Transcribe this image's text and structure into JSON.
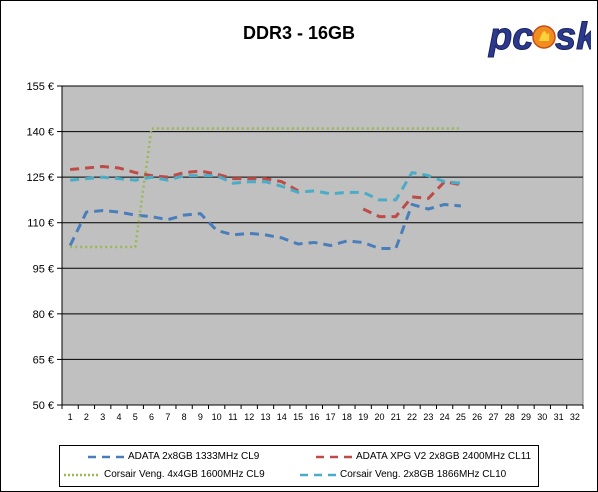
{
  "brand": {
    "logo_text": "pcosk"
  },
  "chart_data": {
    "type": "line",
    "title": "DDR3 - 16GB",
    "xlabel": "",
    "ylabel": "",
    "x": [
      1,
      2,
      3,
      4,
      5,
      6,
      7,
      8,
      9,
      10,
      11,
      12,
      13,
      14,
      15,
      16,
      17,
      18,
      19,
      20,
      21,
      22,
      23,
      24,
      25,
      26,
      27,
      28,
      29,
      30,
      31,
      32
    ],
    "x_tick_labels": [
      "1",
      "2",
      "3",
      "4",
      "5",
      "6",
      "7",
      "8",
      "9",
      "10",
      "11",
      "12",
      "13",
      "14",
      "15",
      "16",
      "17",
      "18",
      "19",
      "20",
      "21",
      "22",
      "23",
      "24",
      "25",
      "26",
      "27",
      "28",
      "29",
      "30",
      "31",
      "32"
    ],
    "ylim": [
      50,
      155
    ],
    "y_ticks": [
      50,
      65,
      80,
      95,
      110,
      125,
      140,
      155
    ],
    "y_tick_labels": [
      "50 €",
      "65 €",
      "80 €",
      "95 €",
      "110 €",
      "125 €",
      "140 €",
      "155 €"
    ],
    "grid": "horizontal",
    "plot_background": "#c0c0c0",
    "legend_position": "bottom",
    "series": [
      {
        "name": "ADATA 2x8GB 1333MHz CL9",
        "color": "#4a7ebb",
        "style": "dashed",
        "values": [
          102.5,
          113.5,
          114,
          113.5,
          112.5,
          112,
          111,
          112.5,
          113,
          107.5,
          106,
          106.5,
          106,
          105,
          103,
          103.5,
          102.5,
          104,
          103.5,
          101.5,
          101.5,
          116,
          114.5,
          116,
          115.5,
          null,
          null,
          null,
          null,
          null,
          null,
          null
        ]
      },
      {
        "name": "ADATA XPG V2 2x8GB 2400MHz CL11",
        "color": "#be4b48",
        "style": "dashed",
        "values": [
          null,
          null,
          null,
          null,
          null,
          null,
          null,
          null,
          null,
          null,
          null,
          null,
          null,
          null,
          null,
          null,
          null,
          null,
          114.5,
          112,
          112,
          118.5,
          118,
          123.5,
          122.5,
          null,
          null,
          null,
          null,
          null,
          null,
          null
        ],
        "values_upper": [
          127.5,
          128,
          128.5,
          128,
          126.5,
          125.5,
          125,
          126.5,
          127,
          126,
          124.5,
          124.5,
          124.5,
          123.5,
          120.5,
          null,
          null,
          null,
          null,
          null,
          null,
          null,
          null,
          null,
          null,
          null,
          null,
          null,
          null,
          null,
          null,
          null
        ]
      },
      {
        "name": "Corsair Veng. 4x4GB 1600MHz CL9",
        "color": "#98b954",
        "style": "dotted",
        "values": [
          102,
          102,
          102,
          102,
          102,
          141,
          141,
          141,
          141,
          141,
          141,
          141,
          141,
          141,
          141,
          141,
          141,
          141,
          141,
          141,
          141,
          141,
          141,
          141,
          141,
          null,
          null,
          null,
          null,
          null,
          null,
          null
        ]
      },
      {
        "name": "Corsair Veng. 2x8GB 1866MHz CL10",
        "color": "#4bacc6",
        "style": "dashed",
        "values": [
          124,
          124.5,
          125,
          124.5,
          124,
          125,
          124,
          125.5,
          125.5,
          125.5,
          123,
          123.5,
          123.5,
          122,
          120,
          120.5,
          119.5,
          120,
          120,
          117.5,
          117.5,
          126.5,
          125.5,
          123.5,
          123,
          null,
          null,
          null,
          null,
          null,
          null,
          null
        ]
      }
    ]
  }
}
